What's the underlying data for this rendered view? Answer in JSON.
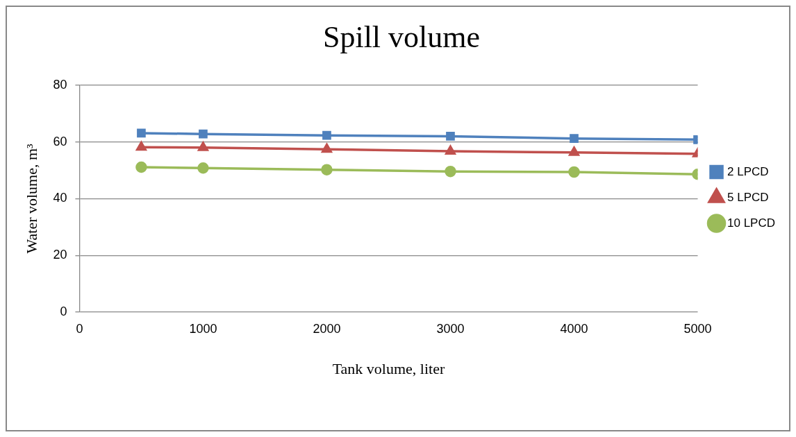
{
  "chart_data": {
    "type": "line",
    "title": "Spill volume",
    "xlabel": "Tank volume, liter",
    "ylabel": "Water volume, m³",
    "x": [
      500,
      1000,
      2000,
      3000,
      4000,
      5000
    ],
    "xlim": [
      0,
      5000
    ],
    "xticks": [
      0,
      1000,
      2000,
      3000,
      4000,
      5000
    ],
    "ylim": [
      0,
      80
    ],
    "yticks": [
      0,
      20,
      40,
      60,
      80
    ],
    "grid": "y",
    "legend": "right",
    "series": [
      {
        "name": "2 LPCD",
        "color": "#4f81bd",
        "marker": "square",
        "values": [
          63.1,
          62.8,
          62.3,
          62.0,
          61.2,
          60.8
        ]
      },
      {
        "name": "5 LPCD",
        "color": "#c0504d",
        "marker": "triangle",
        "values": [
          58.1,
          58.0,
          57.4,
          56.7,
          56.3,
          55.8
        ]
      },
      {
        "name": "10 LPCD",
        "color": "#9bbb59",
        "marker": "circle",
        "values": [
          51.1,
          50.8,
          50.2,
          49.6,
          49.4,
          48.6
        ]
      }
    ]
  }
}
